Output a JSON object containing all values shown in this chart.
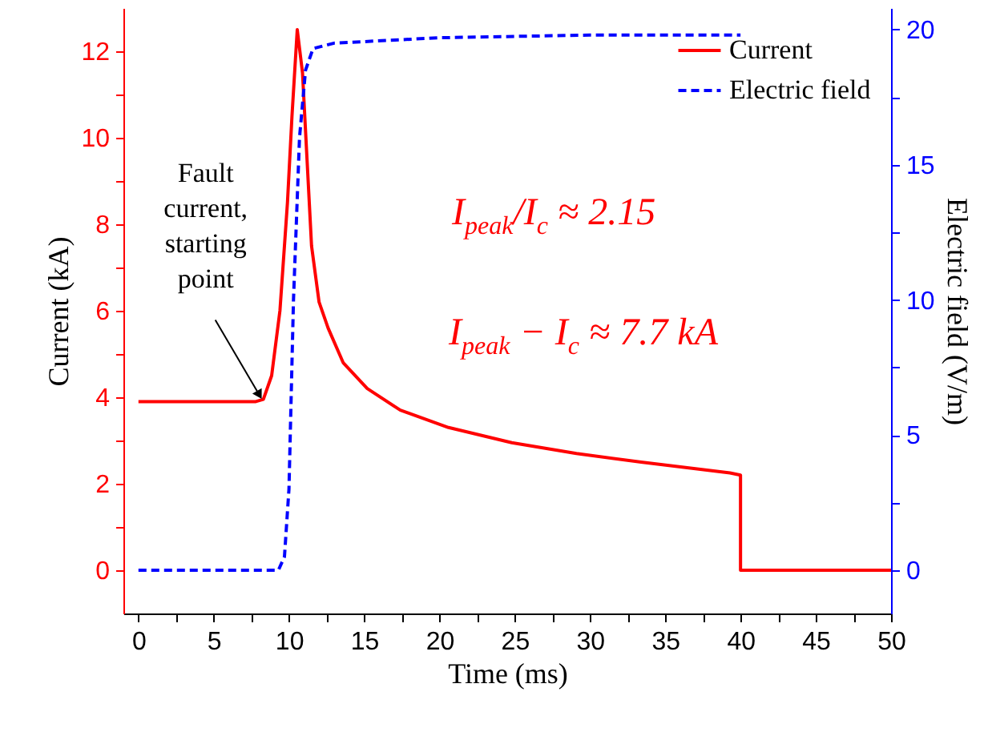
{
  "chart_data": {
    "type": "line",
    "xlabel": "Time (ms)",
    "ylabel": "Current (kA)",
    "y2label": "Electric field (V/m)",
    "series": [
      {
        "name": "Current",
        "color": "#ff0000",
        "line_style": "solid",
        "x": [
          0,
          7.8,
          8.3,
          8.85,
          9.4,
          9.9,
          10.2,
          10.55,
          10.9,
          11.2,
          11.5,
          12.0,
          12.6,
          13.6,
          15.2,
          17.4,
          20.6,
          24.8,
          29.1,
          33.4,
          39.3,
          40,
          40,
          50
        ],
        "values": [
          3.9,
          3.9,
          3.95,
          4.5,
          6,
          8.5,
          10.5,
          12.5,
          11.5,
          9.5,
          7.5,
          6.2,
          5.6,
          4.8,
          4.2,
          3.7,
          3.3,
          2.95,
          2.7,
          2.5,
          2.25,
          2.2,
          0,
          0
        ]
      },
      {
        "name": "Electric field",
        "color": "#0000ff",
        "line_style": "dashed",
        "axis": "y2",
        "x": [
          0,
          9.3,
          9.7,
          10.0,
          10.3,
          10.7,
          11.1,
          11.6,
          13,
          20,
          30,
          40
        ],
        "values": [
          0,
          0,
          0.5,
          3,
          10,
          16,
          18.5,
          19.3,
          19.5,
          19.7,
          19.8,
          19.8
        ]
      }
    ],
    "xlim": [
      -1,
      50
    ],
    "ylim": [
      -1,
      13
    ],
    "y2lim": [
      -1.6,
      20.8
    ],
    "xticks": [
      0,
      {
        "value": 2.5,
        "label": null
      },
      5,
      {
        "value": 7.5,
        "label": null
      },
      10,
      {
        "value": 12.5,
        "label": null
      },
      15,
      {
        "value": 17.5,
        "label": null
      },
      20,
      {
        "value": 22.5,
        "label": null
      },
      25,
      {
        "value": 27.5,
        "label": null
      },
      30,
      {
        "value": 32.5,
        "label": null
      },
      35,
      {
        "value": 37.5,
        "label": null
      },
      40,
      {
        "value": 42.5,
        "label": null
      },
      45,
      {
        "value": 47.5,
        "label": null
      },
      50
    ],
    "yticks": [
      0,
      {
        "value": 1,
        "label": null
      },
      2,
      {
        "value": 3,
        "label": null
      },
      4,
      {
        "value": 5,
        "label": null
      },
      6,
      {
        "value": 7,
        "label": null
      },
      8,
      {
        "value": 9,
        "label": null
      },
      10,
      {
        "value": 11,
        "label": null
      },
      12
    ],
    "y2ticks": [
      0,
      {
        "value": 2.5,
        "label": null
      },
      5,
      {
        "value": 7.5,
        "label": null
      },
      10,
      {
        "value": 12.5,
        "label": null
      },
      15,
      {
        "value": 17.5,
        "label": null
      },
      20
    ],
    "legend": "top right",
    "grid": false,
    "annotations": [
      {
        "text": "Fault current, starting point",
        "x": 8.3,
        "y": 3.9
      },
      "I$_{peak}$/I$_{c}$ ≈ 2.15",
      "I$_{peak}$ − I$_{c}$ ≈ 7.7 kA"
    ]
  }
}
